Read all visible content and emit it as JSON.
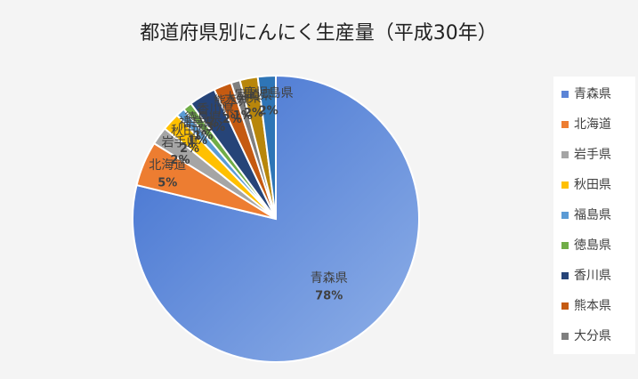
{
  "chart_data": {
    "type": "pie",
    "title": "都道府県別にんにく生産量（平成30年）",
    "categories": [
      "青森県",
      "北海道",
      "岩手県",
      "秋田県",
      "福島県",
      "徳島県",
      "香川県",
      "熊本県",
      "大分県",
      "宮崎県",
      "鹿児島県"
    ],
    "values": [
      78,
      5,
      2,
      2,
      1,
      1,
      3,
      2,
      1,
      2,
      2
    ],
    "value_labels": [
      "78%",
      "5%",
      "2%",
      "2%",
      "1%",
      "1%",
      "3%",
      "2%",
      "1%",
      "2%",
      "2%"
    ],
    "colors": [
      "#5b84d6",
      "#ed7d31",
      "#a5a5a5",
      "#ffc000",
      "#5b9bd5",
      "#70ad47",
      "#264478",
      "#c55a11",
      "#7f7f7f",
      "#b8860b",
      "#2e75b6"
    ],
    "legend": "right"
  }
}
